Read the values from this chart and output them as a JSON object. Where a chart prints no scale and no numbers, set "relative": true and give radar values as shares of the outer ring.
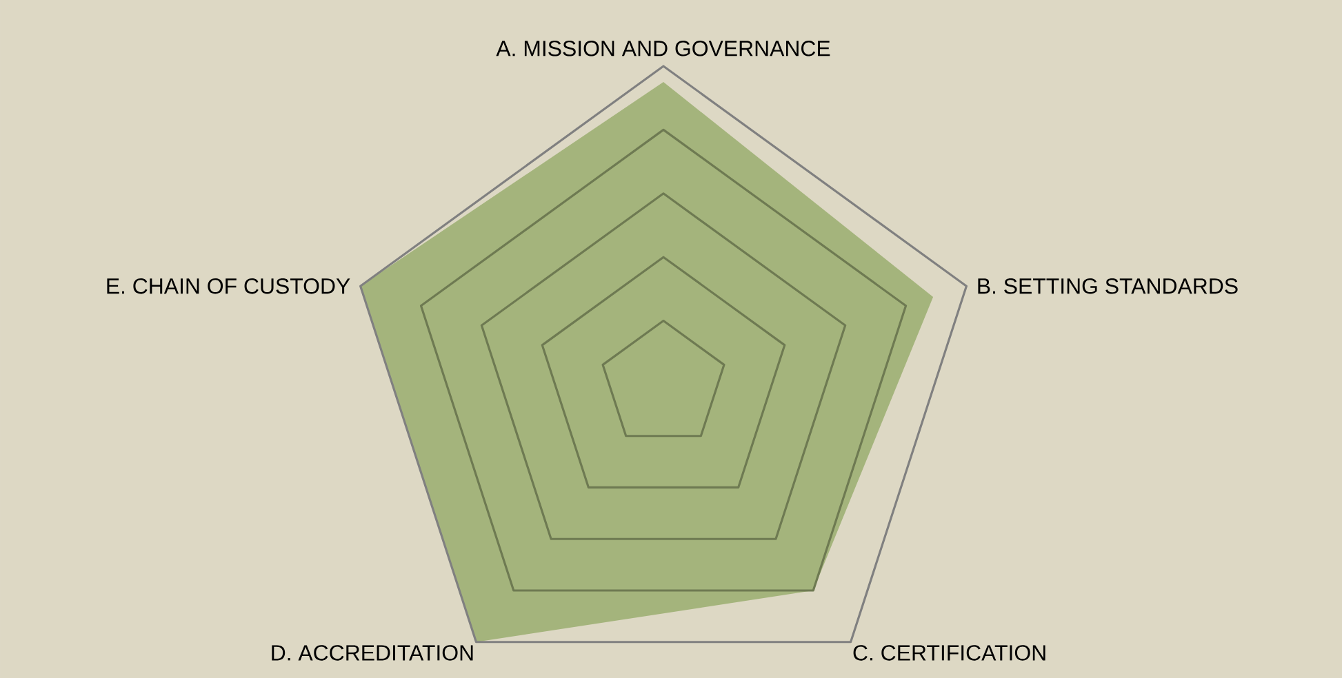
{
  "chart_data": {
    "type": "radar",
    "relative": true,
    "grid": true,
    "categories": [
      "A. MISSION AND GOVERNANCE",
      "B. SETTING STANDARDS",
      "C. CERTIFICATION",
      "D. ACCREDITATION",
      "E. CHAIN OF CUSTODY"
    ],
    "series": [
      {
        "color": "#a4b47c",
        "values": [
          0.95,
          0.89,
          0.8,
          1.0,
          1.0
        ]
      }
    ]
  }
}
